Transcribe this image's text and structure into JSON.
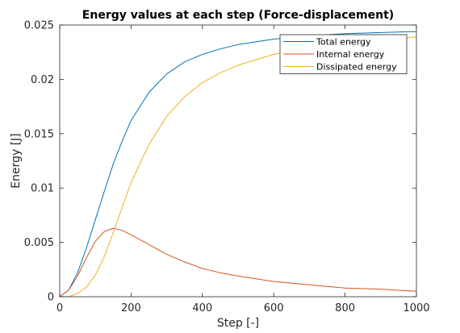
{
  "chart_data": {
    "type": "line",
    "title": "Energy values at each step (Force-displacement)",
    "xlabel": "Step [-]",
    "ylabel": "Energy [J]",
    "xlim": [
      0,
      1000
    ],
    "ylim": [
      0,
      0.025
    ],
    "xticks": [
      0,
      200,
      400,
      600,
      800,
      1000
    ],
    "xtick_labels": [
      "0",
      "200",
      "400",
      "600",
      "800",
      "1000"
    ],
    "yticks": [
      0,
      0.005,
      0.01,
      0.015,
      0.02,
      0.025
    ],
    "ytick_labels": [
      "0",
      "0.005",
      "0.01",
      "0.015",
      "0.02",
      "0.025"
    ],
    "grid": false,
    "legend_position": "top-right",
    "x": [
      0,
      25,
      50,
      75,
      100,
      125,
      150,
      175,
      200,
      250,
      300,
      350,
      400,
      450,
      500,
      600,
      700,
      800,
      900,
      1000
    ],
    "series": [
      {
        "name": "Total energy",
        "color": "#0072BD",
        "values": [
          0,
          0.0006,
          0.0022,
          0.0045,
          0.0071,
          0.0097,
          0.0122,
          0.0143,
          0.0162,
          0.0188,
          0.0205,
          0.0216,
          0.0223,
          0.0228,
          0.0232,
          0.0237,
          0.024,
          0.0242,
          0.0243,
          0.0244
        ]
      },
      {
        "name": "Internal energy",
        "color": "#D95319",
        "values": [
          0,
          0.0006,
          0.0019,
          0.0036,
          0.0051,
          0.006,
          0.0063,
          0.0061,
          0.0057,
          0.0048,
          0.0039,
          0.0032,
          0.0026,
          0.0022,
          0.0019,
          0.0014,
          0.0011,
          0.0008,
          0.0007,
          0.0005
        ]
      },
      {
        "name": "Dissipated energy",
        "color": "#EDB120",
        "values": [
          0,
          0,
          0.0003,
          0.0009,
          0.002,
          0.0037,
          0.0059,
          0.0082,
          0.0105,
          0.014,
          0.0166,
          0.0184,
          0.0197,
          0.0206,
          0.0213,
          0.0223,
          0.0229,
          0.0234,
          0.0236,
          0.0239
        ]
      }
    ]
  }
}
